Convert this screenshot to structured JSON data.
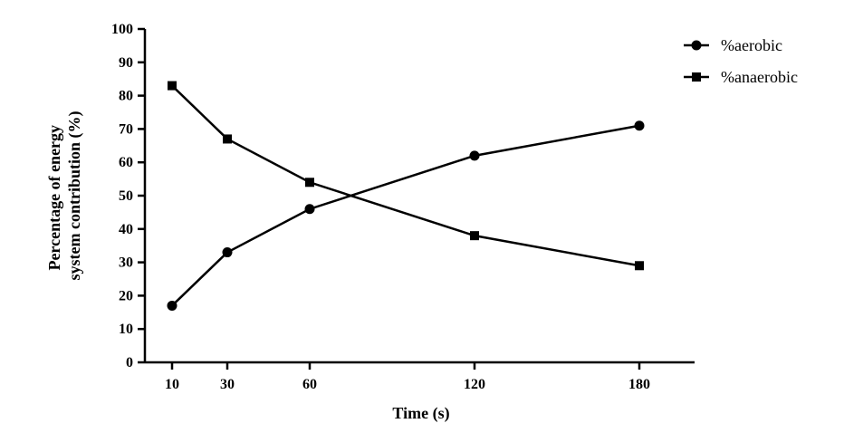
{
  "chart_data": {
    "type": "line",
    "xlabel": "Time (s)",
    "ylabel": [
      "Percentage of energy",
      "system contribution (%)"
    ],
    "x": [
      10,
      30,
      60,
      120,
      180
    ],
    "ylim": [
      0,
      100
    ],
    "y_ticks": [
      0,
      10,
      20,
      30,
      40,
      50,
      60,
      70,
      80,
      90,
      100
    ],
    "legend_position": "top-right",
    "grid": false,
    "series": [
      {
        "name": "%aerobic",
        "marker": "circle",
        "values": [
          17,
          33,
          46,
          62,
          71
        ]
      },
      {
        "name": "%anaerobic",
        "marker": "square",
        "values": [
          83,
          67,
          54,
          38,
          29
        ]
      }
    ],
    "color": "#000000"
  }
}
